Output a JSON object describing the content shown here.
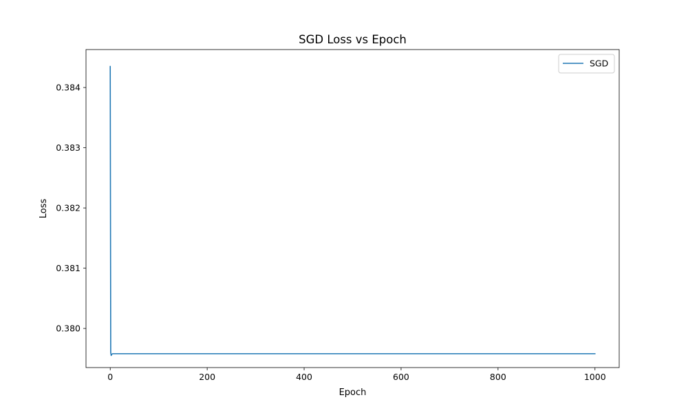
{
  "chart_data": {
    "type": "line",
    "title": "SGD Loss vs Epoch",
    "xlabel": "Epoch",
    "ylabel": "Loss",
    "xlim": [
      -50,
      1050
    ],
    "ylim": [
      0.37935,
      0.38463
    ],
    "xticks": [
      0,
      200,
      400,
      600,
      800,
      1000
    ],
    "yticks": [
      0.38,
      0.381,
      0.382,
      0.383,
      0.384
    ],
    "xtick_labels": [
      "0",
      "200",
      "400",
      "600",
      "800",
      "1000"
    ],
    "ytick_labels": [
      "0.380",
      "0.381",
      "0.382",
      "0.383",
      "0.384"
    ],
    "grid": false,
    "legend": {
      "position": "top-right",
      "entries": [
        "SGD"
      ]
    },
    "series": [
      {
        "name": "SGD",
        "color": "#1f77b4",
        "x": [
          0,
          1,
          2,
          3,
          5,
          10,
          20,
          50,
          100,
          200,
          400,
          600,
          800,
          1000
        ],
        "y": [
          0.38435,
          0.3796,
          0.37955,
          0.37957,
          0.37958,
          0.37958,
          0.37958,
          0.37958,
          0.37958,
          0.37958,
          0.37958,
          0.37958,
          0.37958,
          0.37958
        ]
      }
    ]
  }
}
